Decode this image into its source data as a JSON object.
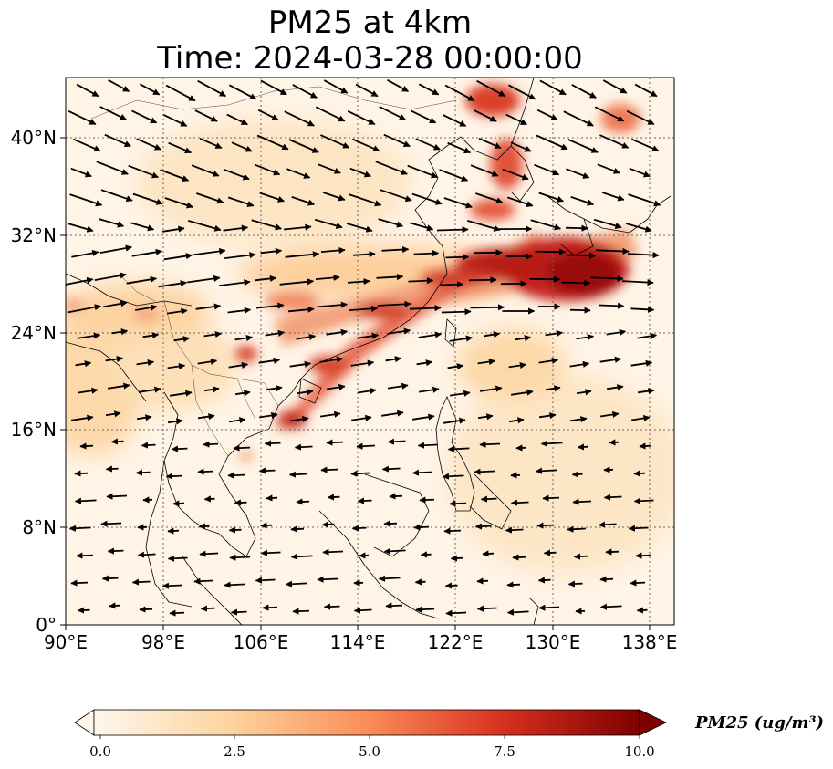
{
  "title": {
    "line1": "PM25 at 4km",
    "line2": "Time: 2024-03-28 00:00:00"
  },
  "map": {
    "extent": {
      "lon_min": 90,
      "lon_max": 140,
      "lat_min": 0,
      "lat_max": 45
    },
    "gridlines": "dotted",
    "lon_ticks": [
      {
        "value": 90,
        "label": "90°E"
      },
      {
        "value": 98,
        "label": "98°E"
      },
      {
        "value": 106,
        "label": "106°E"
      },
      {
        "value": 114,
        "label": "114°E"
      },
      {
        "value": 122,
        "label": "122°E"
      },
      {
        "value": 130,
        "label": "130°E"
      },
      {
        "value": 138,
        "label": "138°E"
      }
    ],
    "lat_ticks": [
      {
        "value": 0,
        "label": "0°"
      },
      {
        "value": 8,
        "label": "8°N"
      },
      {
        "value": 16,
        "label": "16°N"
      },
      {
        "value": 24,
        "label": "24°N"
      },
      {
        "value": 32,
        "label": "32°N"
      },
      {
        "value": 40,
        "label": "40°N"
      }
    ]
  },
  "colorbar": {
    "label": "PM25 (ug/m³)",
    "colormap": "OrRd",
    "range": [
      0.0,
      10.0
    ],
    "extend": "both",
    "ticks": [
      "0.0",
      "2.5",
      "5.0",
      "7.5",
      "10.0"
    ],
    "colors": [
      "#fff7ec",
      "#fdd49e",
      "#fc8d59",
      "#d7301f",
      "#7f0000"
    ]
  }
}
